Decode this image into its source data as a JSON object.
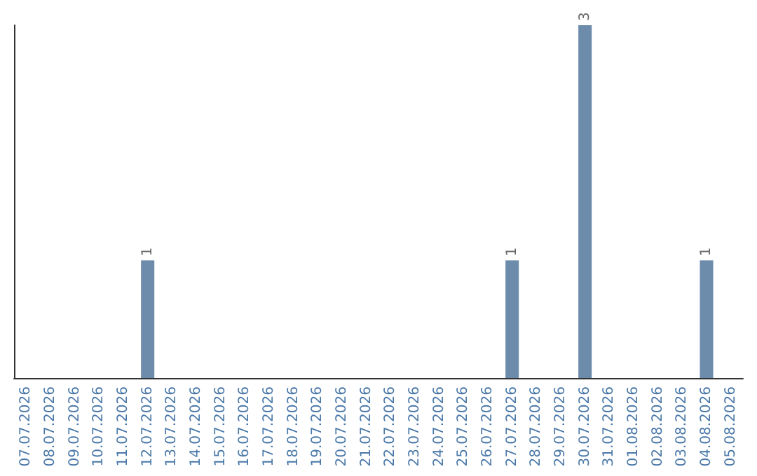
{
  "chart_data": {
    "type": "bar",
    "categories": [
      "07.07.2026",
      "08.07.2026",
      "09.07.2026",
      "10.07.2026",
      "11.07.2026",
      "12.07.2026",
      "13.07.2026",
      "14.07.2026",
      "15.07.2026",
      "16.07.2026",
      "17.07.2026",
      "18.07.2026",
      "19.07.2026",
      "20.07.2026",
      "21.07.2026",
      "22.07.2026",
      "23.07.2026",
      "24.07.2026",
      "25.07.2026",
      "26.07.2026",
      "27.07.2026",
      "28.07.2026",
      "29.07.2026",
      "30.07.2026",
      "31.07.2026",
      "01.08.2026",
      "02.08.2026",
      "03.08.2026",
      "04.08.2026",
      "05.08.2026"
    ],
    "values": [
      0,
      0,
      0,
      0,
      0,
      1,
      0,
      0,
      0,
      0,
      0,
      0,
      0,
      0,
      0,
      0,
      0,
      0,
      0,
      0,
      1,
      0,
      0,
      3,
      0,
      0,
      0,
      0,
      1,
      0
    ],
    "value_labels": [
      null,
      null,
      null,
      null,
      null,
      "1",
      null,
      null,
      null,
      null,
      null,
      null,
      null,
      null,
      null,
      null,
      null,
      null,
      null,
      null,
      "1",
      null,
      null,
      "3",
      null,
      null,
      null,
      null,
      "1",
      null
    ],
    "color": "#6d8cac",
    "grid": false
  }
}
